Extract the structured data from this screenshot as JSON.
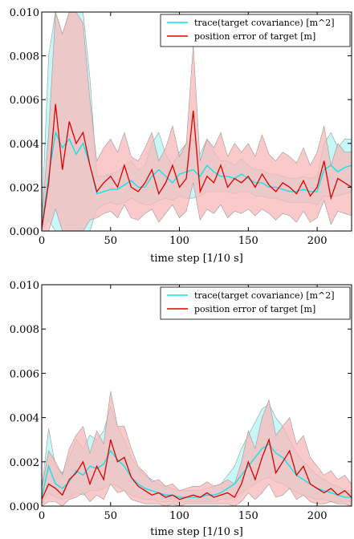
{
  "chart_data": [
    {
      "type": "line",
      "xlabel": "time step [1/10 s]",
      "ylabel": "",
      "xlim": [
        0,
        225
      ],
      "ylim": [
        0,
        0.01
      ],
      "xticks": [
        "0",
        "50",
        "100",
        "150",
        "200"
      ],
      "yticks": [
        "0.000",
        "0.002",
        "0.004",
        "0.006",
        "0.008",
        "0.010"
      ],
      "legend_position": "top-right",
      "grid": false,
      "series": [
        {
          "name": "trace(target covariance) [m^2]",
          "color": "#00e5ee",
          "band_color": "#b3f5f7",
          "x": [
            0,
            5,
            10,
            15,
            20,
            25,
            30,
            35,
            40,
            45,
            50,
            55,
            60,
            65,
            70,
            75,
            80,
            85,
            90,
            95,
            100,
            105,
            110,
            115,
            120,
            125,
            130,
            135,
            140,
            145,
            150,
            155,
            160,
            165,
            170,
            175,
            180,
            185,
            190,
            195,
            200,
            205,
            210,
            215,
            220,
            225
          ],
          "mean": [
            0.0002,
            0.0025,
            0.0045,
            0.0038,
            0.0042,
            0.0035,
            0.004,
            0.003,
            0.0017,
            0.0018,
            0.0019,
            0.0019,
            0.0021,
            0.0023,
            0.002,
            0.002,
            0.0025,
            0.0028,
            0.0025,
            0.0022,
            0.0026,
            0.0027,
            0.0028,
            0.0025,
            0.003,
            0.0027,
            0.0025,
            0.0025,
            0.0024,
            0.0026,
            0.0024,
            0.0022,
            0.0022,
            0.002,
            0.002,
            0.0019,
            0.0018,
            0.0018,
            0.0019,
            0.0018,
            0.0018,
            0.0028,
            0.003,
            0.0027,
            0.0029,
            0.003
          ],
          "upper": [
            0.0005,
            0.008,
            0.01,
            0.009,
            0.01,
            0.01,
            0.01,
            0.007,
            0.0025,
            0.0025,
            0.0026,
            0.0027,
            0.003,
            0.0032,
            0.0028,
            0.003,
            0.004,
            0.0045,
            0.0035,
            0.003,
            0.0036,
            0.004,
            0.0042,
            0.0035,
            0.0042,
            0.0036,
            0.0032,
            0.0032,
            0.003,
            0.0033,
            0.003,
            0.0028,
            0.0028,
            0.0026,
            0.0026,
            0.0025,
            0.0024,
            0.0024,
            0.0025,
            0.0024,
            0.0025,
            0.004,
            0.0045,
            0.0038,
            0.0042,
            0.0042
          ],
          "lower": [
            0.0,
            0.0005,
            0.0,
            0.0,
            0.0,
            0.0,
            0.0,
            0.0,
            0.001,
            0.0012,
            0.0013,
            0.0012,
            0.0013,
            0.0015,
            0.0013,
            0.0012,
            0.0012,
            0.0014,
            0.0015,
            0.0014,
            0.0016,
            0.0015,
            0.0015,
            0.0016,
            0.0018,
            0.0018,
            0.0018,
            0.0018,
            0.0017,
            0.0018,
            0.0018,
            0.0016,
            0.0016,
            0.0015,
            0.0015,
            0.0014,
            0.0013,
            0.0013,
            0.0013,
            0.0013,
            0.0012,
            0.0016,
            0.0016,
            0.0016,
            0.0017,
            0.0018
          ]
        },
        {
          "name": "position error of target [m]",
          "color": "#dd0000",
          "band_color": "#f8b8b8",
          "x": [
            0,
            5,
            10,
            15,
            20,
            25,
            30,
            35,
            40,
            45,
            50,
            55,
            60,
            65,
            70,
            75,
            80,
            85,
            90,
            95,
            100,
            105,
            110,
            115,
            120,
            125,
            130,
            135,
            140,
            145,
            150,
            155,
            160,
            165,
            170,
            175,
            180,
            185,
            190,
            195,
            200,
            205,
            210,
            215,
            220,
            225
          ],
          "mean": [
            0.0001,
            0.0022,
            0.0058,
            0.0028,
            0.005,
            0.004,
            0.0045,
            0.003,
            0.0018,
            0.0022,
            0.0025,
            0.002,
            0.003,
            0.002,
            0.0018,
            0.0022,
            0.0028,
            0.0017,
            0.0022,
            0.003,
            0.002,
            0.0024,
            0.0055,
            0.0018,
            0.0025,
            0.0022,
            0.003,
            0.002,
            0.0024,
            0.0022,
            0.0025,
            0.002,
            0.0026,
            0.0021,
            0.0018,
            0.0022,
            0.002,
            0.0017,
            0.0023,
            0.0016,
            0.002,
            0.0032,
            0.0015,
            0.0024,
            0.0022,
            0.002
          ],
          "upper": [
            0.0004,
            0.0045,
            0.01,
            0.009,
            0.01,
            0.01,
            0.0095,
            0.006,
            0.0032,
            0.0038,
            0.0042,
            0.0036,
            0.0045,
            0.0034,
            0.0032,
            0.0038,
            0.0045,
            0.0032,
            0.0038,
            0.0048,
            0.0034,
            0.004,
            0.0085,
            0.0032,
            0.0042,
            0.0038,
            0.0045,
            0.0034,
            0.004,
            0.0036,
            0.004,
            0.0034,
            0.0044,
            0.0035,
            0.0032,
            0.0036,
            0.0034,
            0.0031,
            0.0038,
            0.003,
            0.0036,
            0.0048,
            0.003,
            0.004,
            0.0036,
            0.0036
          ],
          "lower": [
            0.0,
            0.0,
            0.001,
            0.0,
            0.0,
            0.0,
            0.0,
            0.0005,
            0.0006,
            0.0008,
            0.0009,
            0.0006,
            0.0012,
            0.0006,
            0.0005,
            0.0008,
            0.001,
            0.0004,
            0.0008,
            0.0012,
            0.0006,
            0.0009,
            0.0022,
            0.0005,
            0.001,
            0.0008,
            0.0012,
            0.0006,
            0.0009,
            0.0008,
            0.001,
            0.0007,
            0.001,
            0.0008,
            0.0005,
            0.0008,
            0.0007,
            0.0004,
            0.0009,
            0.0004,
            0.0006,
            0.0014,
            0.0003,
            0.0009,
            0.0008,
            0.0007
          ]
        }
      ]
    },
    {
      "type": "line",
      "xlabel": "time step [1/10 s]",
      "ylabel": "",
      "xlim": [
        0,
        225
      ],
      "ylim": [
        0,
        0.01
      ],
      "xticks": [
        "0",
        "50",
        "100",
        "150",
        "200"
      ],
      "yticks": [
        "0.000",
        "0.002",
        "0.004",
        "0.006",
        "0.008",
        "0.010"
      ],
      "legend_position": "top-right",
      "grid": false,
      "series": [
        {
          "name": "trace(target covariance) [m^2]",
          "color": "#00e5ee",
          "band_color": "#b3f5f7",
          "x": [
            0,
            5,
            10,
            15,
            20,
            25,
            30,
            35,
            40,
            45,
            50,
            55,
            60,
            65,
            70,
            75,
            80,
            85,
            90,
            95,
            100,
            105,
            110,
            115,
            120,
            125,
            130,
            135,
            140,
            145,
            150,
            155,
            160,
            165,
            170,
            175,
            180,
            185,
            190,
            195,
            200,
            205,
            210,
            215,
            220,
            225
          ],
          "mean": [
            0.0004,
            0.0018,
            0.001,
            0.0008,
            0.0011,
            0.0016,
            0.0014,
            0.0018,
            0.0017,
            0.0019,
            0.0025,
            0.0021,
            0.0018,
            0.0013,
            0.001,
            0.0008,
            0.0007,
            0.0006,
            0.0005,
            0.0005,
            0.0004,
            0.0004,
            0.0004,
            0.0004,
            0.0005,
            0.0005,
            0.0006,
            0.0008,
            0.001,
            0.0014,
            0.0018,
            0.0022,
            0.0026,
            0.0028,
            0.0024,
            0.0022,
            0.0018,
            0.0014,
            0.0012,
            0.001,
            0.0008,
            0.0007,
            0.0006,
            0.0005,
            0.0004,
            0.0004
          ],
          "upper": [
            0.0008,
            0.0035,
            0.0018,
            0.0015,
            0.0022,
            0.003,
            0.0026,
            0.0032,
            0.003,
            0.0034,
            0.0045,
            0.0036,
            0.003,
            0.0022,
            0.0017,
            0.0014,
            0.0012,
            0.001,
            0.0009,
            0.0008,
            0.0007,
            0.0007,
            0.0007,
            0.0007,
            0.0008,
            0.0009,
            0.001,
            0.0014,
            0.0018,
            0.0026,
            0.0032,
            0.0038,
            0.0044,
            0.0046,
            0.004,
            0.0036,
            0.003,
            0.0024,
            0.002,
            0.0017,
            0.0014,
            0.0012,
            0.001,
            0.0009,
            0.0007,
            0.0007
          ],
          "lower": [
            0.0001,
            0.0006,
            0.0004,
            0.0003,
            0.0004,
            0.0006,
            0.0005,
            0.0007,
            0.0007,
            0.0008,
            0.001,
            0.0009,
            0.0007,
            0.0005,
            0.0004,
            0.0003,
            0.0003,
            0.0002,
            0.0002,
            0.0002,
            0.0002,
            0.0002,
            0.0002,
            0.0002,
            0.0002,
            0.0002,
            0.0003,
            0.0003,
            0.0004,
            0.0006,
            0.0008,
            0.001,
            0.0012,
            0.0013,
            0.0011,
            0.001,
            0.0008,
            0.0006,
            0.0005,
            0.0004,
            0.0003,
            0.0003,
            0.0002,
            0.0002,
            0.0002,
            0.0002
          ]
        },
        {
          "name": "position error of target [m]",
          "color": "#dd0000",
          "band_color": "#f8b8b8",
          "x": [
            0,
            5,
            10,
            15,
            20,
            25,
            30,
            35,
            40,
            45,
            50,
            55,
            60,
            65,
            70,
            75,
            80,
            85,
            90,
            95,
            100,
            105,
            110,
            115,
            120,
            125,
            130,
            135,
            140,
            145,
            150,
            155,
            160,
            165,
            170,
            175,
            180,
            185,
            190,
            195,
            200,
            205,
            210,
            215,
            220,
            225
          ],
          "mean": [
            0.0003,
            0.001,
            0.0008,
            0.0005,
            0.0012,
            0.0015,
            0.002,
            0.001,
            0.0018,
            0.0012,
            0.003,
            0.002,
            0.0022,
            0.0013,
            0.0009,
            0.0007,
            0.0005,
            0.0006,
            0.0004,
            0.0005,
            0.0003,
            0.0004,
            0.0005,
            0.0004,
            0.0006,
            0.0004,
            0.0005,
            0.0006,
            0.0004,
            0.001,
            0.002,
            0.0012,
            0.0022,
            0.003,
            0.0015,
            0.002,
            0.0025,
            0.0014,
            0.0018,
            0.001,
            0.0008,
            0.0006,
            0.0008,
            0.0005,
            0.0007,
            0.0004
          ],
          "upper": [
            0.0008,
            0.0025,
            0.002,
            0.0014,
            0.0026,
            0.0032,
            0.0036,
            0.0024,
            0.0034,
            0.0028,
            0.0052,
            0.0036,
            0.0036,
            0.0026,
            0.0018,
            0.0015,
            0.0011,
            0.0012,
            0.0009,
            0.001,
            0.0007,
            0.0008,
            0.0009,
            0.0009,
            0.0011,
            0.0009,
            0.001,
            0.0012,
            0.001,
            0.002,
            0.0034,
            0.0026,
            0.004,
            0.0048,
            0.0032,
            0.0036,
            0.004,
            0.0028,
            0.0032,
            0.0022,
            0.0018,
            0.0014,
            0.0016,
            0.0012,
            0.0014,
            0.001
          ],
          "lower": [
            0.0,
            0.0002,
            0.0002,
            0.0,
            0.0003,
            0.0004,
            0.0006,
            0.0002,
            0.0005,
            0.0003,
            0.001,
            0.0006,
            0.0007,
            0.0003,
            0.0002,
            0.0001,
            0.0001,
            0.0001,
            0.0,
            0.0001,
            0.0,
            0.0001,
            0.0001,
            0.0001,
            0.0001,
            0.0001,
            0.0001,
            0.0001,
            0.0,
            0.0002,
            0.0006,
            0.0003,
            0.0006,
            0.001,
            0.0004,
            0.0005,
            0.0008,
            0.0003,
            0.0005,
            0.0002,
            0.0001,
            0.0001,
            0.0002,
            0.0001,
            0.0001,
            0.0
          ]
        }
      ]
    }
  ]
}
